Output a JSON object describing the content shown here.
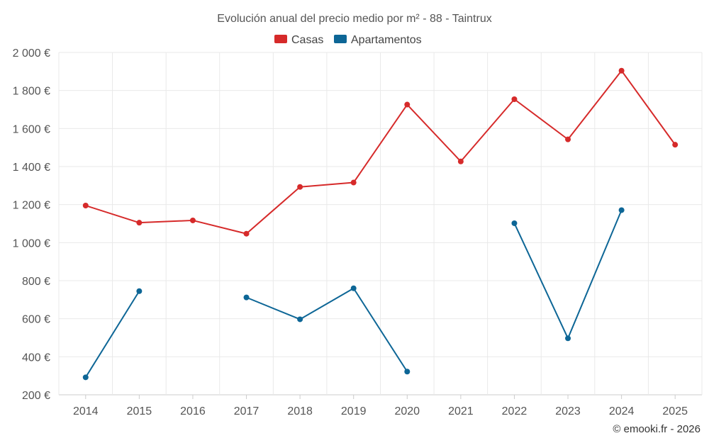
{
  "chart_data": {
    "type": "line",
    "title": "Evolución anual del precio medio por m² - 88 - Taintrux",
    "categories": [
      "2014",
      "2015",
      "2016",
      "2017",
      "2018",
      "2019",
      "2020",
      "2021",
      "2022",
      "2023",
      "2024",
      "2025"
    ],
    "series": [
      {
        "name": "Casas",
        "color": "#d62a2a",
        "values": [
          1195,
          1105,
          1117,
          1047,
          1293,
          1316,
          1726,
          1427,
          1754,
          1543,
          1904,
          1515
        ]
      },
      {
        "name": "Apartamentos",
        "color": "#0d6696",
        "values": [
          292,
          745,
          null,
          712,
          597,
          760,
          322,
          null,
          1102,
          497,
          1171,
          null
        ]
      }
    ],
    "ylim": [
      200,
      2000
    ],
    "yticks": [
      200,
      400,
      600,
      800,
      1000,
      1200,
      1400,
      1600,
      1800,
      2000
    ],
    "ytick_labels": [
      "200 €",
      "400 €",
      "600 €",
      "800 €",
      "1 000 €",
      "1 200 €",
      "1 400 €",
      "1 600 €",
      "1 800 €",
      "2 000 €"
    ],
    "xlabel": "",
    "ylabel": "",
    "grid": true,
    "legend_position": "top-center"
  },
  "credit": "© emooki.fr - 2026"
}
